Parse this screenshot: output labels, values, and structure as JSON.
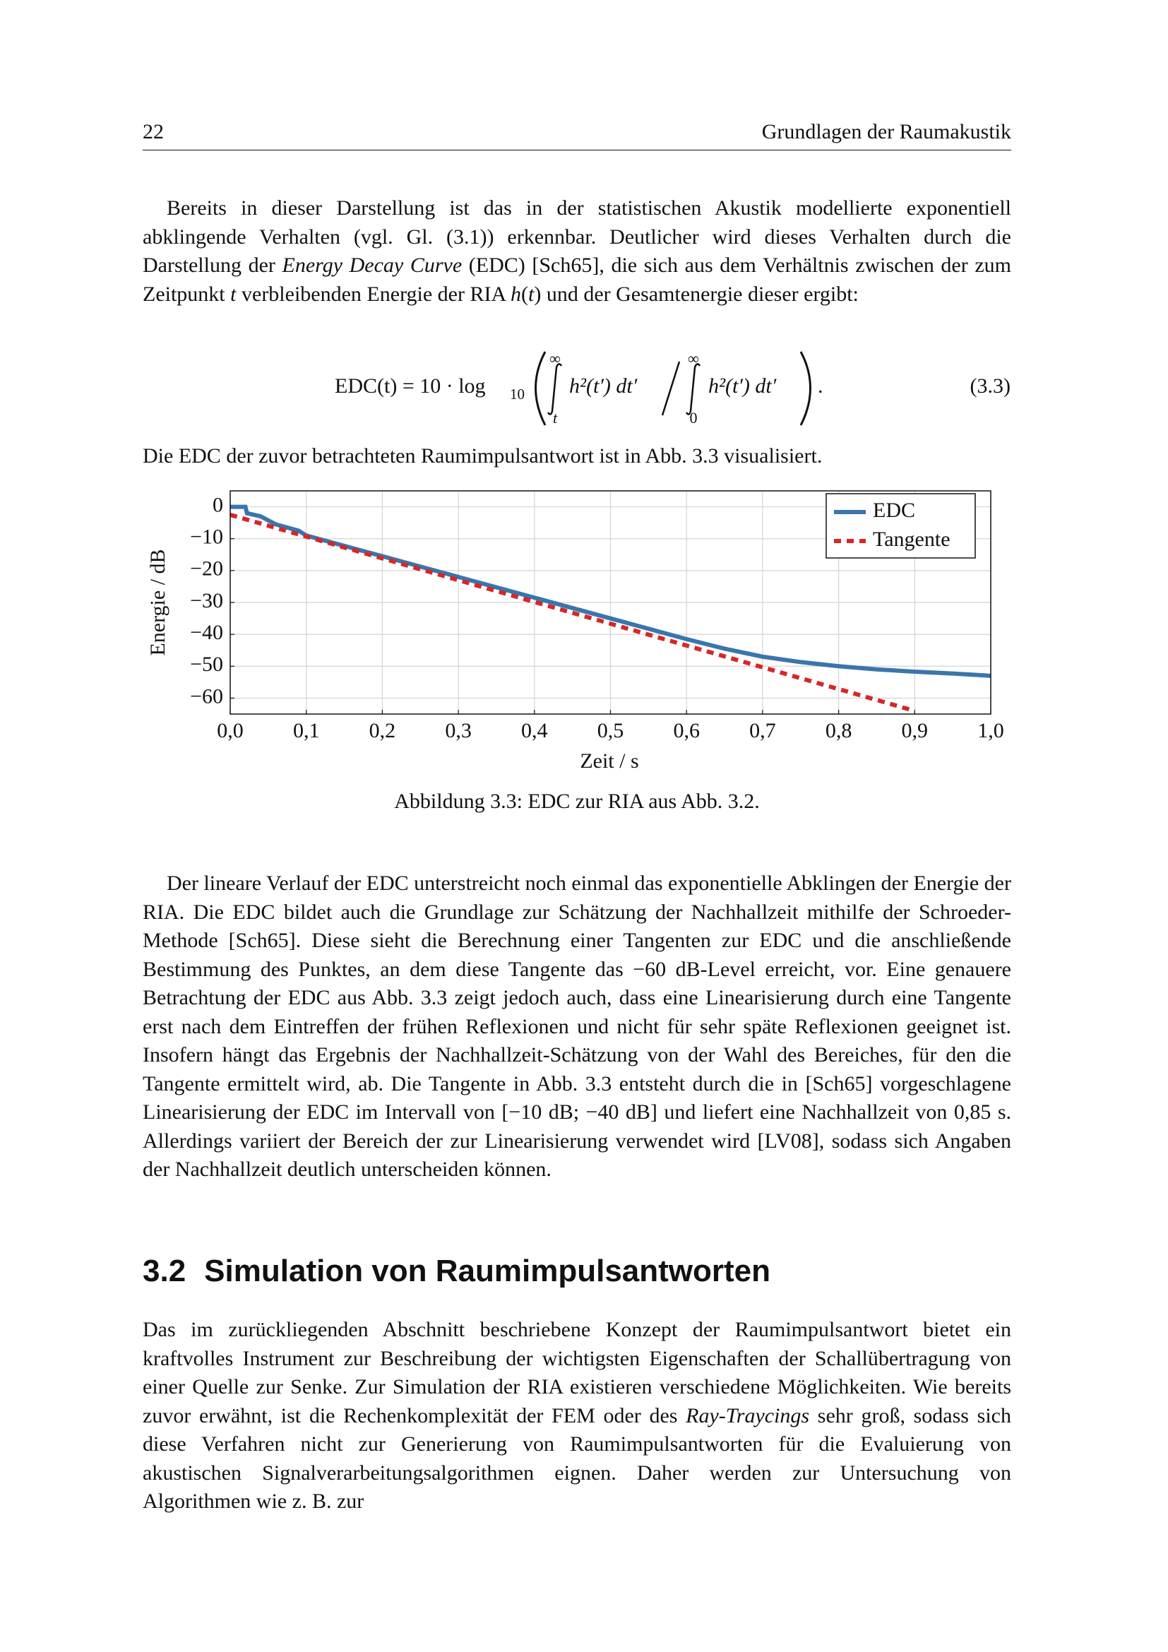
{
  "header": {
    "page_number": "22",
    "running_title": "Grundlagen der Raumakustik"
  },
  "paragraphs_top": [
    {
      "runs": [
        {
          "text": "Bereits in dieser Darstellung ist das in der statistischen Akustik modellierte exponentiell abklingende Verhalten (vgl. Gl. (3.1)) erkennbar. Deutlicher wird dieses Verhalten durch die Darstellung der "
        },
        {
          "text": "Energy Decay Curve",
          "italic": true
        },
        {
          "text": " (EDC) [Sch65], die sich aus dem Verhältnis zwischen der zum Zeitpunkt "
        },
        {
          "text": "t",
          "italic": true
        },
        {
          "text": " verbleibenden Energie der RIA "
        },
        {
          "text": "h",
          "italic": true
        },
        {
          "text": "("
        },
        {
          "text": "t",
          "italic": true
        },
        {
          "text": ") und der Gesamtenergie dieser ergibt:"
        }
      ]
    }
  ],
  "equation": {
    "lhs": "EDC(t) = 10 · log",
    "log_base": "10",
    "upper_1": "∞",
    "lower_1": "t",
    "integrand_1": "h²(t′) dt′",
    "upper_2": "∞",
    "lower_2": "0",
    "integrand_2": "h²(t′) dt′",
    "end": ".",
    "number": "(3.3)"
  },
  "paragraphs_after_equation": [
    {
      "runs": [
        {
          "text": "Die EDC der zuvor betrachteten Raumimpulsantwort ist in Abb. 3.3 visualisiert."
        }
      ]
    }
  ],
  "figure": {
    "chart_data": {
      "type": "line",
      "xlabel": "Zeit / s",
      "ylabel": "Energie / dB",
      "xlim": [
        0,
        1
      ],
      "ylim": [
        -65,
        5
      ],
      "xticks": [
        {
          "value": 0,
          "label": "0,0"
        },
        {
          "value": 0.1,
          "label": "0,1"
        },
        {
          "value": 0.2,
          "label": "0,2"
        },
        {
          "value": 0.3,
          "label": "0,3"
        },
        {
          "value": 0.4,
          "label": "0,4"
        },
        {
          "value": 0.5,
          "label": "0,5"
        },
        {
          "value": 0.6,
          "label": "0,6"
        },
        {
          "value": 0.7,
          "label": "0,7"
        },
        {
          "value": 0.8,
          "label": "0,8"
        },
        {
          "value": 0.9,
          "label": "0,9"
        },
        {
          "value": 1,
          "label": "1,0"
        }
      ],
      "yticks": [
        0,
        {
          "value": -10,
          "label": "−10"
        },
        {
          "value": -20,
          "label": "−20"
        },
        {
          "value": -30,
          "label": "−30"
        },
        {
          "value": -40,
          "label": "−40"
        },
        {
          "value": -50,
          "label": "−50"
        },
        {
          "value": -60,
          "label": "−60"
        }
      ],
      "grid": true,
      "legend": "upper right",
      "series": [
        {
          "name": "EDC",
          "color": "#3a75ad",
          "dash": false,
          "x": [
            0,
            0.02,
            0.022,
            0.04,
            0.06,
            0.09,
            0.1,
            0.2,
            0.3,
            0.4,
            0.5,
            0.6,
            0.65,
            0.7,
            0.75,
            0.8,
            0.85,
            0.9,
            0.95,
            1.0
          ],
          "values": [
            0,
            0,
            -2,
            -3,
            -5.5,
            -7.5,
            -9,
            -15.5,
            -22,
            -28.5,
            -35,
            -41.5,
            -44.5,
            -47,
            -48.7,
            -50,
            -51,
            -51.7,
            -52.3,
            -53
          ]
        },
        {
          "name": "Tangente",
          "color": "#d62728",
          "dash": true,
          "x": [
            0,
            0.9
          ],
          "values": [
            -2.5,
            -64
          ]
        }
      ]
    },
    "caption": "Abbildung 3.3: EDC zur RIA aus Abb. 3.2."
  },
  "paragraphs_mid": [
    {
      "runs": [
        {
          "text": "Der lineare Verlauf der EDC unterstreicht noch einmal das exponentielle Abklingen der Energie der RIA. Die EDC bildet auch die Grundlage zur Schätzung der Nachhallzeit mithilfe der Schroeder-Methode [Sch65]. Diese sieht die Berechnung einer Tangenten zur EDC und die anschließende Bestimmung des Punktes, an dem diese Tangente das −60 dB-Level erreicht, vor. Eine genauere Betrachtung der EDC aus Abb. 3.3 zeigt jedoch auch, dass eine Linearisierung durch eine Tangente erst nach dem Eintreffen der frühen Reflexionen und nicht für sehr späte Reflexionen geeignet ist. Insofern hängt das Ergebnis der Nachhallzeit-Schätzung von der Wahl des Bereiches, für den die Tangente ermittelt wird, ab. Die Tangente in Abb. 3.3 entsteht durch die in [Sch65] vorgeschlagene Linearisierung der EDC im Intervall von [−10 dB; −40 dB] und liefert eine Nachhallzeit von 0,85 s. Allerdings variiert der Bereich der zur Linearisierung verwendet wird [LV08], sodass sich Angaben der Nachhallzeit deutlich unterscheiden können."
        }
      ]
    }
  ],
  "section": {
    "number": "3.2",
    "title": "Simulation von Raumimpulsantworten"
  },
  "paragraphs_bottom": [
    {
      "runs": [
        {
          "text": "Das im zurückliegenden Abschnitt beschriebene Konzept der Raumimpulsantwort bietet ein kraftvolles Instrument zur Beschreibung der wichtigsten Eigenschaften der Schallübertragung von einer Quelle zur Senke. Zur Simulation der RIA existieren verschiedene Möglichkeiten. Wie bereits zuvor erwähnt, ist die Rechenkomplexität der FEM oder des "
        },
        {
          "text": "Ray-Traycings",
          "italic": true
        },
        {
          "text": " sehr groß, sodass sich diese Verfahren nicht zur Generierung von Raumimpulsantworten für die Evaluierung von akustischen Signalverarbeitungsalgorithmen eignen. Daher werden zur Untersuchung von Algorithmen wie z. B. zur"
        }
      ]
    }
  ]
}
